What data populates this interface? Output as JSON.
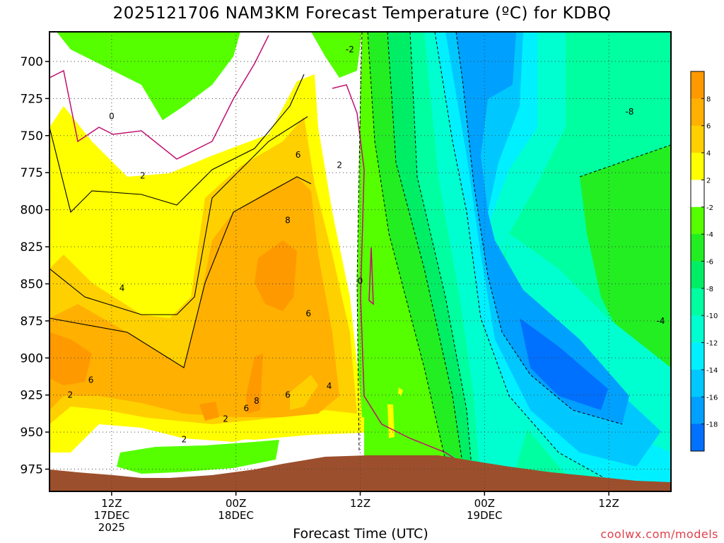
{
  "chart_data": {
    "type": "heatmap",
    "title": "2025121706 NAM3KM Forecast Temperature (ºC) for KDBQ",
    "xlabel": "Forecast Time (UTC)",
    "ylabel": "",
    "x_ticks": [
      {
        "time": "2025-12-17T12Z",
        "lines": [
          "12Z",
          "17DEC",
          "2025"
        ]
      },
      {
        "time": "2025-12-18T00Z",
        "lines": [
          "00Z",
          "18DEC"
        ]
      },
      {
        "time": "2025-12-18T12Z",
        "lines": [
          "12Z"
        ]
      },
      {
        "time": "2025-12-19T00Z",
        "lines": [
          "00Z",
          "19DEC"
        ]
      },
      {
        "time": "2025-12-19T12Z",
        "lines": [
          "12Z"
        ]
      }
    ],
    "x_range": [
      "2025-12-17T06Z",
      "2025-12-19T18Z"
    ],
    "y_ticks": [
      700,
      725,
      750,
      775,
      800,
      825,
      850,
      875,
      900,
      925,
      950,
      975
    ],
    "y_unit": "hPa",
    "y_range": [
      680,
      990
    ],
    "colorbar": {
      "labels": [
        "8",
        "6",
        "4",
        "2",
        "-2",
        "-4",
        "-6",
        "-8",
        "-10",
        "-12",
        "-14",
        "-16",
        "-18"
      ],
      "bins": [
        {
          "lo": 8,
          "hi": 10,
          "color": "#ff9900"
        },
        {
          "lo": 6,
          "hi": 8,
          "color": "#ffb000"
        },
        {
          "lo": 4,
          "hi": 6,
          "color": "#ffd000"
        },
        {
          "lo": 2,
          "hi": 4,
          "color": "#ffff00"
        },
        {
          "lo": -2,
          "hi": 2,
          "color": "#ffffff"
        },
        {
          "lo": -4,
          "hi": -2,
          "color": "#55ff00"
        },
        {
          "lo": -6,
          "hi": -4,
          "color": "#22ee22"
        },
        {
          "lo": -8,
          "hi": -6,
          "color": "#00ee66"
        },
        {
          "lo": -10,
          "hi": -8,
          "color": "#00ffa0"
        },
        {
          "lo": -12,
          "hi": -10,
          "color": "#00ffd0"
        },
        {
          "lo": -14,
          "hi": -12,
          "color": "#00f0ff"
        },
        {
          "lo": -16,
          "hi": -14,
          "color": "#00c8ff"
        },
        {
          "lo": -18,
          "hi": -16,
          "color": "#00a0ff"
        },
        {
          "lo": -20,
          "hi": -18,
          "color": "#0070ff"
        }
      ]
    },
    "contour_labels": [
      {
        "text": "-2",
        "time": "2025-12-18T11Z",
        "p": 692
      },
      {
        "text": "0",
        "time": "2025-12-17T12Z",
        "p": 737
      },
      {
        "text": "2",
        "time": "2025-12-17T15Z",
        "p": 777
      },
      {
        "text": "6",
        "time": "2025-12-18T06Z",
        "p": 763
      },
      {
        "text": "2",
        "time": "2025-12-18T10Z",
        "p": 770
      },
      {
        "text": "8",
        "time": "2025-12-18T05Z",
        "p": 807
      },
      {
        "text": "4",
        "time": "2025-12-17T13Z",
        "p": 853
      },
      {
        "text": "0",
        "time": "2025-12-18T12Z",
        "p": 848
      },
      {
        "text": "6",
        "time": "2025-12-18T07Z",
        "p": 870
      },
      {
        "text": "6",
        "time": "2025-12-17T10Z",
        "p": 915
      },
      {
        "text": "2",
        "time": "2025-12-17T08Z",
        "p": 925
      },
      {
        "text": "8",
        "time": "2025-12-18T02Z",
        "p": 929
      },
      {
        "text": "6",
        "time": "2025-12-18T05Z",
        "p": 925
      },
      {
        "text": "6",
        "time": "2025-12-18T01Z",
        "p": 934
      },
      {
        "text": "4",
        "time": "2025-12-18T09Z",
        "p": 919
      },
      {
        "text": "2",
        "time": "2025-12-17T23Z",
        "p": 941
      },
      {
        "text": "2",
        "time": "2025-12-17T19Z",
        "p": 955
      },
      {
        "text": "-8",
        "time": "2025-12-19T14Z",
        "p": 734
      },
      {
        "text": "-4",
        "time": "2025-12-19T17Z",
        "p": 875
      }
    ],
    "colors": {
      "terrain": "#9c4f2c",
      "zero_line": "#c01070"
    }
  },
  "footer": {
    "x_axis_title": "Forecast Time (UTC)",
    "credit": "coolwx.com/models"
  }
}
